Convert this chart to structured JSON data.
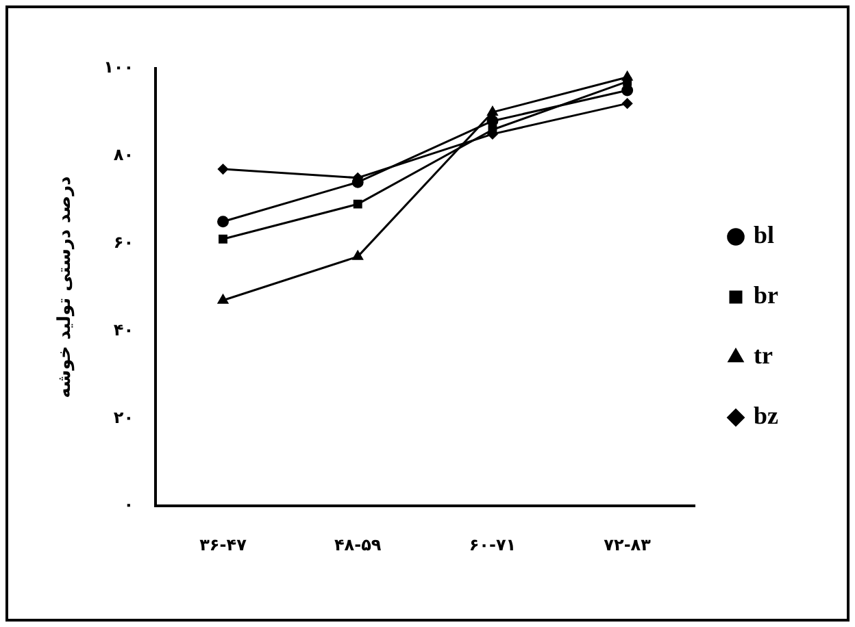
{
  "chart_data": {
    "type": "line",
    "ylabel": "درصد درستی تولید خوشه",
    "categories": [
      "۳۶-۴۷",
      "۴۸-۵۹",
      "۶۰-۷۱",
      "۷۲-۸۳"
    ],
    "series": [
      {
        "name": "bl",
        "color": "#000000",
        "marker": "circle",
        "values": [
          65,
          74,
          88,
          95
        ]
      },
      {
        "name": "br",
        "color": "#000000",
        "marker": "square",
        "values": [
          61,
          69,
          86,
          97
        ]
      },
      {
        "name": "tr",
        "color": "#000000",
        "marker": "triangle",
        "values": [
          47,
          57,
          90,
          98
        ]
      },
      {
        "name": "bz",
        "color": "#000000",
        "marker": "diamond",
        "values": [
          77,
          75,
          85,
          92
        ]
      }
    ],
    "ylim": [
      0,
      100
    ],
    "yticks": [
      {
        "value": 0,
        "label": "۰"
      },
      {
        "value": 20,
        "label": "۲۰"
      },
      {
        "value": 40,
        "label": "۴۰"
      },
      {
        "value": 60,
        "label": "۶۰"
      },
      {
        "value": 80,
        "label": "۸۰"
      },
      {
        "value": 100,
        "label": "۱۰۰"
      }
    ],
    "grid": false,
    "legend": "right",
    "line_style": "solid"
  }
}
